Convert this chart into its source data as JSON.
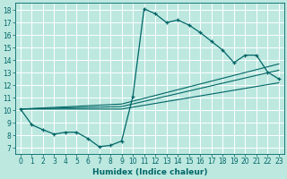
{
  "xlabel": "Humidex (Indice chaleur)",
  "bg_color": "#bde8e0",
  "grid_color": "#ffffff",
  "line_color": "#006666",
  "xlim": [
    -0.5,
    23.5
  ],
  "ylim": [
    6.5,
    18.6
  ],
  "xticks": [
    0,
    1,
    2,
    3,
    4,
    5,
    6,
    7,
    8,
    9,
    10,
    11,
    12,
    13,
    14,
    15,
    16,
    17,
    18,
    19,
    20,
    21,
    22,
    23
  ],
  "yticks": [
    7,
    8,
    9,
    10,
    11,
    12,
    13,
    14,
    15,
    16,
    17,
    18
  ],
  "series1_x": [
    0,
    1,
    2,
    3,
    4,
    5,
    6,
    7,
    8,
    9,
    10,
    11,
    12,
    13,
    14,
    15,
    16,
    17,
    18,
    19,
    20,
    21,
    22,
    23
  ],
  "series1_y": [
    10.1,
    8.85,
    8.45,
    8.1,
    8.25,
    8.25,
    7.75,
    7.1,
    7.2,
    7.55,
    11.1,
    18.1,
    17.7,
    17.0,
    17.2,
    16.8,
    16.2,
    15.5,
    14.8,
    13.8,
    14.4,
    14.4,
    13.05,
    12.5
  ],
  "series2_x": [
    0,
    9,
    23
  ],
  "series2_y": [
    10.1,
    10.5,
    13.7
  ],
  "series3_x": [
    0,
    9,
    23
  ],
  "series3_y": [
    10.1,
    10.3,
    13.2
  ],
  "series4_x": [
    0,
    9,
    23
  ],
  "series4_y": [
    10.1,
    10.1,
    12.2
  ]
}
